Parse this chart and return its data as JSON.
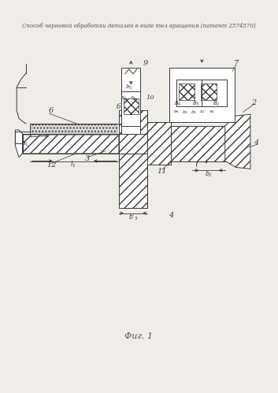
{
  "title": "Способ черновой обработки деталей в виде тел вращения (патент 2574570)",
  "fig_label": "Фиг. 1",
  "bg_color": "#f0ede8",
  "line_color": "#3a3a3a",
  "title_color": "#555555",
  "fig_size": [
    3.53,
    4.99
  ],
  "dpi": 100
}
